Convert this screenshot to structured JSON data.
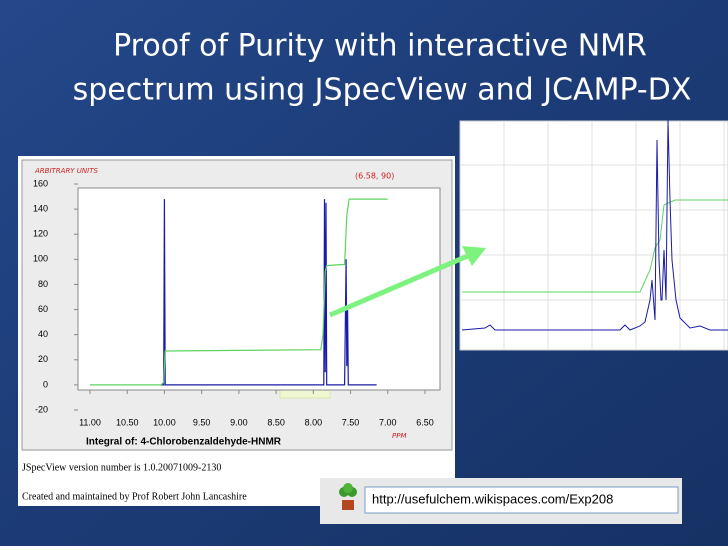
{
  "slide": {
    "title_line1": "Proof of Purity with interactive NMR",
    "title_line2": "spectrum using JSpecView and JCAMP-DX",
    "version_text": "JSpecView version number is 1.0.20071009-2130",
    "credit_text": "Created and maintained by Prof Robert John Lancashire",
    "url": "http://usefulchem.wikispaces.com/Exp208"
  },
  "chart_data": {
    "type": "line",
    "y_axis_label": "ARBITRARY UNITS",
    "coordinate_readout": "(6.58, 90)",
    "x_axis_label": "PPM",
    "caption": "Integral of: 4-Chlorobenzaldehyde-HNMR",
    "xlim": [
      11,
      6.5
    ],
    "ylim": [
      -20,
      160
    ],
    "xticks": [
      {
        "value": 11,
        "label": "11.00"
      },
      {
        "value": 10.5,
        "label": "10.50"
      },
      {
        "value": 10,
        "label": "10.00"
      },
      {
        "value": 9.5,
        "label": "9.50"
      },
      {
        "value": 9,
        "label": "9.00"
      },
      {
        "value": 8.5,
        "label": "8.50"
      },
      {
        "value": 8,
        "label": "8.00"
      },
      {
        "value": 7.5,
        "label": "7.50"
      },
      {
        "value": 7,
        "label": "7.00"
      },
      {
        "value": 6.5,
        "label": "6.50"
      }
    ],
    "yticks": [
      160,
      140,
      120,
      100,
      80,
      60,
      40,
      20,
      0,
      -20
    ],
    "series": [
      {
        "color": "#1a1aa8",
        "x": [
          10.05,
          10.01,
          10.0,
          9.99,
          7.9,
          7.86,
          7.85,
          7.84,
          7.83,
          7.82,
          7.8,
          7.58,
          7.56,
          7.55,
          7.54,
          7.53,
          7.5,
          7.15
        ],
        "values": [
          0,
          0,
          148,
          0,
          0,
          0,
          148,
          10,
          145,
          0,
          0,
          0,
          100,
          15,
          60,
          0,
          0,
          0
        ]
      },
      {
        "color": "#5fd35f",
        "x": [
          11.0,
          10.05,
          10.01,
          9.99,
          7.9,
          7.87,
          7.84,
          7.82,
          7.58,
          7.55,
          7.52,
          7.0
        ],
        "values": [
          0,
          0,
          2,
          27,
          28,
          40,
          90,
          95,
          96,
          135,
          148,
          148
        ]
      }
    ]
  }
}
